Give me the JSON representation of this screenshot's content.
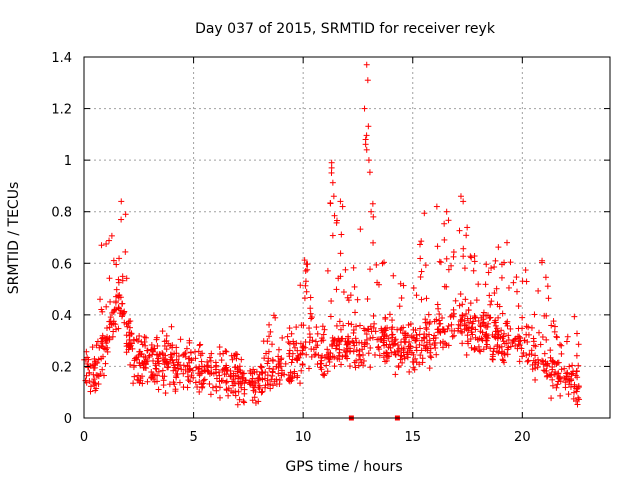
{
  "chart_data": {
    "type": "scatter",
    "title": "Day 037 of 2015, SRMTID for receiver reyk",
    "xlabel": "GPS time / hours",
    "ylabel": "SRMTID / TECUs",
    "xlim": [
      0,
      24
    ],
    "ylim": [
      0,
      1.4
    ],
    "xticks": [
      0,
      5,
      10,
      15,
      20
    ],
    "xtick_labels": [
      "0",
      "5",
      "10",
      "15",
      "20"
    ],
    "yticks": [
      0,
      0.2,
      0.4,
      0.6,
      0.8,
      1,
      1.2,
      1.4
    ],
    "ytick_labels": [
      "0",
      "0.2",
      "0.4",
      "0.6",
      "0.8",
      "1",
      "1.2",
      "1.4"
    ],
    "grid": true,
    "marker": "plus",
    "color": "#ff0000",
    "series_profile": {
      "name": "SRMTID",
      "x": [
        0.0,
        0.5,
        0.8,
        1.0,
        1.3,
        1.6,
        1.8,
        2.0,
        2.3,
        2.6,
        3.0,
        3.5,
        4.0,
        4.5,
        5.0,
        5.5,
        6.0,
        6.5,
        7.0,
        7.4,
        7.7,
        8.0,
        8.5,
        9.0,
        9.5,
        10.0,
        10.3,
        10.6,
        11.0,
        11.3,
        11.6,
        12.0,
        12.5,
        12.9,
        13.2,
        13.6,
        14.0,
        14.5,
        15.0,
        15.5,
        16.0,
        16.5,
        17.0,
        17.3,
        17.6,
        18.0,
        18.5,
        19.0,
        19.5,
        20.0,
        20.5,
        21.0,
        21.5,
        22.0,
        22.3,
        22.6
      ],
      "typical": [
        0.17,
        0.18,
        0.25,
        0.3,
        0.38,
        0.45,
        0.42,
        0.3,
        0.22,
        0.2,
        0.2,
        0.21,
        0.2,
        0.18,
        0.17,
        0.17,
        0.16,
        0.16,
        0.14,
        0.11,
        0.1,
        0.14,
        0.16,
        0.18,
        0.2,
        0.24,
        0.3,
        0.24,
        0.22,
        0.26,
        0.3,
        0.28,
        0.28,
        0.3,
        0.3,
        0.3,
        0.28,
        0.28,
        0.26,
        0.28,
        0.3,
        0.34,
        0.38,
        0.36,
        0.34,
        0.32,
        0.32,
        0.3,
        0.3,
        0.28,
        0.24,
        0.2,
        0.18,
        0.15,
        0.12,
        0.1
      ],
      "upper": [
        0.3,
        0.3,
        0.55,
        0.68,
        0.78,
        0.82,
        0.84,
        0.45,
        0.32,
        0.32,
        0.33,
        0.36,
        0.36,
        0.3,
        0.3,
        0.28,
        0.28,
        0.3,
        0.26,
        0.2,
        0.2,
        0.24,
        0.42,
        0.38,
        0.34,
        0.6,
        0.66,
        0.44,
        0.34,
        0.99,
        0.86,
        0.56,
        0.7,
        1.37,
        0.8,
        0.62,
        0.6,
        0.58,
        0.56,
        0.8,
        0.82,
        0.8,
        0.86,
        0.84,
        0.7,
        0.6,
        0.62,
        0.68,
        0.6,
        0.56,
        0.62,
        0.6,
        0.36,
        0.3,
        0.43,
        0.3
      ]
    },
    "extreme_points": [
      {
        "x": 11.3,
        "y": 0.99
      },
      {
        "x": 11.3,
        "y": 0.97
      },
      {
        "x": 11.4,
        "y": 0.86
      },
      {
        "x": 11.7,
        "y": 0.84
      },
      {
        "x": 11.8,
        "y": 0.82
      },
      {
        "x": 12.8,
        "y": 1.2
      },
      {
        "x": 12.85,
        "y": 1.08
      },
      {
        "x": 12.9,
        "y": 1.37
      },
      {
        "x": 12.95,
        "y": 1.31
      },
      {
        "x": 12.9,
        "y": 1.04
      },
      {
        "x": 13.0,
        "y": 1.0
      },
      {
        "x": 13.1,
        "y": 0.8
      },
      {
        "x": 13.2,
        "y": 0.78
      },
      {
        "x": 1.7,
        "y": 0.84
      },
      {
        "x": 1.9,
        "y": 0.79
      },
      {
        "x": 0.8,
        "y": 0.67
      },
      {
        "x": 17.2,
        "y": 0.86
      },
      {
        "x": 17.3,
        "y": 0.84
      },
      {
        "x": 16.1,
        "y": 0.82
      },
      {
        "x": 19.3,
        "y": 0.68
      },
      {
        "x": 20.9,
        "y": 0.61
      }
    ],
    "point_count": 1400,
    "markers_on_axis": [
      12.2,
      14.3
    ]
  }
}
